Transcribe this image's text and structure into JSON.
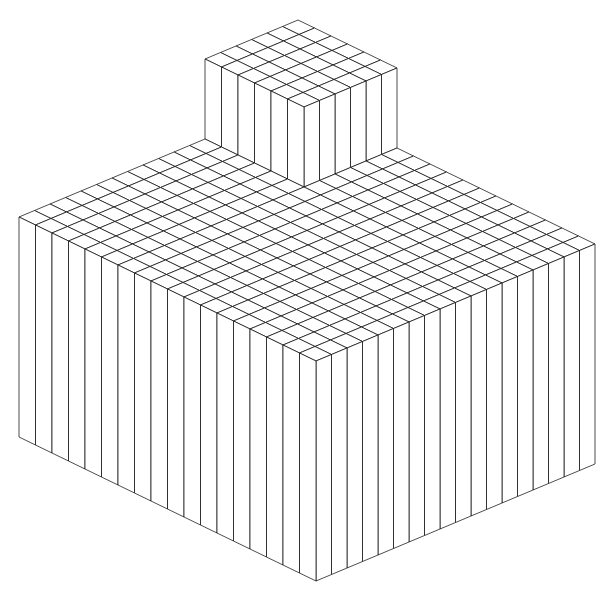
{
  "chart_data": {
    "type": "surface",
    "tick_labels": false,
    "grid": false,
    "zlim": [
      0,
      3
    ],
    "z": [
      [
        3,
        3,
        3,
        3,
        3,
        3,
        2.2,
        2.2,
        2.2,
        2.2,
        2.2,
        2.2,
        2.2,
        2.2,
        2.2,
        2.2,
        2.2,
        2.2
      ],
      [
        3,
        3,
        3,
        3,
        3,
        3,
        2.2,
        2.2,
        2.2,
        2.2,
        2.2,
        2.2,
        2.2,
        2.2,
        2.2,
        2.2,
        2.2,
        2.2
      ],
      [
        3,
        3,
        3,
        3,
        3,
        3,
        2.2,
        2.2,
        2.2,
        2.2,
        2.2,
        2.2,
        2.2,
        2.2,
        2.2,
        2.2,
        2.2,
        2.2
      ],
      [
        3,
        3,
        3,
        3,
        3,
        3,
        2.2,
        2.2,
        2.2,
        2.2,
        2.2,
        2.2,
        2.2,
        2.2,
        2.2,
        2.2,
        2.2,
        2.2
      ],
      [
        3,
        3,
        3,
        3,
        3,
        3,
        2.2,
        2.2,
        2.2,
        2.2,
        2.2,
        2.2,
        2.2,
        2.2,
        2.2,
        2.2,
        2.2,
        2.2
      ],
      [
        3,
        3,
        3,
        3,
        3,
        3,
        2.2,
        2.2,
        2.2,
        2.2,
        2.2,
        2.2,
        2.2,
        2.2,
        2.2,
        2.2,
        2.2,
        2.2
      ],
      [
        2.2,
        2.2,
        2.2,
        2.2,
        2.2,
        2.2,
        2.2,
        2.2,
        2.2,
        2.2,
        2.2,
        2.2,
        2.2,
        2.2,
        2.2,
        2.2,
        2.2,
        2.2
      ],
      [
        2.2,
        2.2,
        2.2,
        2.2,
        2.2,
        2.2,
        2.2,
        2.2,
        2.2,
        2.2,
        2.2,
        2.2,
        2.2,
        2.2,
        2.2,
        2.2,
        2.2,
        2.2
      ],
      [
        2.2,
        2.2,
        2.2,
        2.2,
        2.2,
        2.2,
        2.2,
        2.2,
        2.2,
        2.2,
        2.2,
        2.2,
        2.2,
        2.2,
        2.2,
        2.2,
        2.2,
        2.2
      ],
      [
        2.2,
        2.2,
        2.2,
        2.2,
        2.2,
        2.2,
        2.2,
        2.2,
        2.2,
        2.2,
        2.2,
        2.2,
        2.2,
        2.2,
        2.2,
        2.2,
        2.2,
        2.2
      ],
      [
        2.2,
        2.2,
        2.2,
        2.2,
        2.2,
        2.2,
        2.2,
        2.2,
        2.2,
        2.2,
        2.2,
        2.2,
        2.2,
        2.2,
        2.2,
        2.2,
        2.2,
        2.2
      ],
      [
        2.2,
        2.2,
        2.2,
        2.2,
        2.2,
        2.2,
        2.2,
        2.2,
        2.2,
        2.2,
        2.2,
        2.2,
        2.2,
        2.2,
        2.2,
        2.2,
        2.2,
        2.2
      ],
      [
        2.2,
        2.2,
        2.2,
        2.2,
        2.2,
        2.2,
        2.2,
        2.2,
        2.2,
        2.2,
        2.2,
        2.2,
        2.2,
        2.2,
        2.2,
        2.2,
        2.2,
        2.2
      ],
      [
        2.2,
        2.2,
        2.2,
        2.2,
        2.2,
        2.2,
        2.2,
        2.2,
        2.2,
        2.2,
        2.2,
        2.2,
        2.2,
        2.2,
        2.2,
        2.2,
        2.2,
        2.2
      ],
      [
        2.2,
        2.2,
        2.2,
        2.2,
        2.2,
        2.2,
        2.2,
        2.2,
        2.2,
        2.2,
        2.2,
        2.2,
        2.2,
        2.2,
        2.2,
        2.2,
        2.2,
        2.2
      ],
      [
        2.2,
        2.2,
        2.2,
        2.2,
        2.2,
        2.2,
        2.2,
        2.2,
        2.2,
        2.2,
        2.2,
        2.2,
        2.2,
        2.2,
        2.2,
        2.2,
        2.2,
        2.2
      ],
      [
        2.2,
        2.2,
        2.2,
        2.2,
        2.2,
        2.2,
        2.2,
        2.2,
        2.2,
        2.2,
        2.2,
        2.2,
        2.2,
        2.2,
        2.2,
        2.2,
        2.2,
        2.2
      ],
      [
        2.2,
        2.2,
        2.2,
        2.2,
        2.2,
        2.2,
        2.2,
        2.2,
        2.2,
        2.2,
        2.2,
        2.2,
        2.2,
        2.2,
        2.2,
        2.2,
        2.2,
        2.2
      ]
    ]
  }
}
